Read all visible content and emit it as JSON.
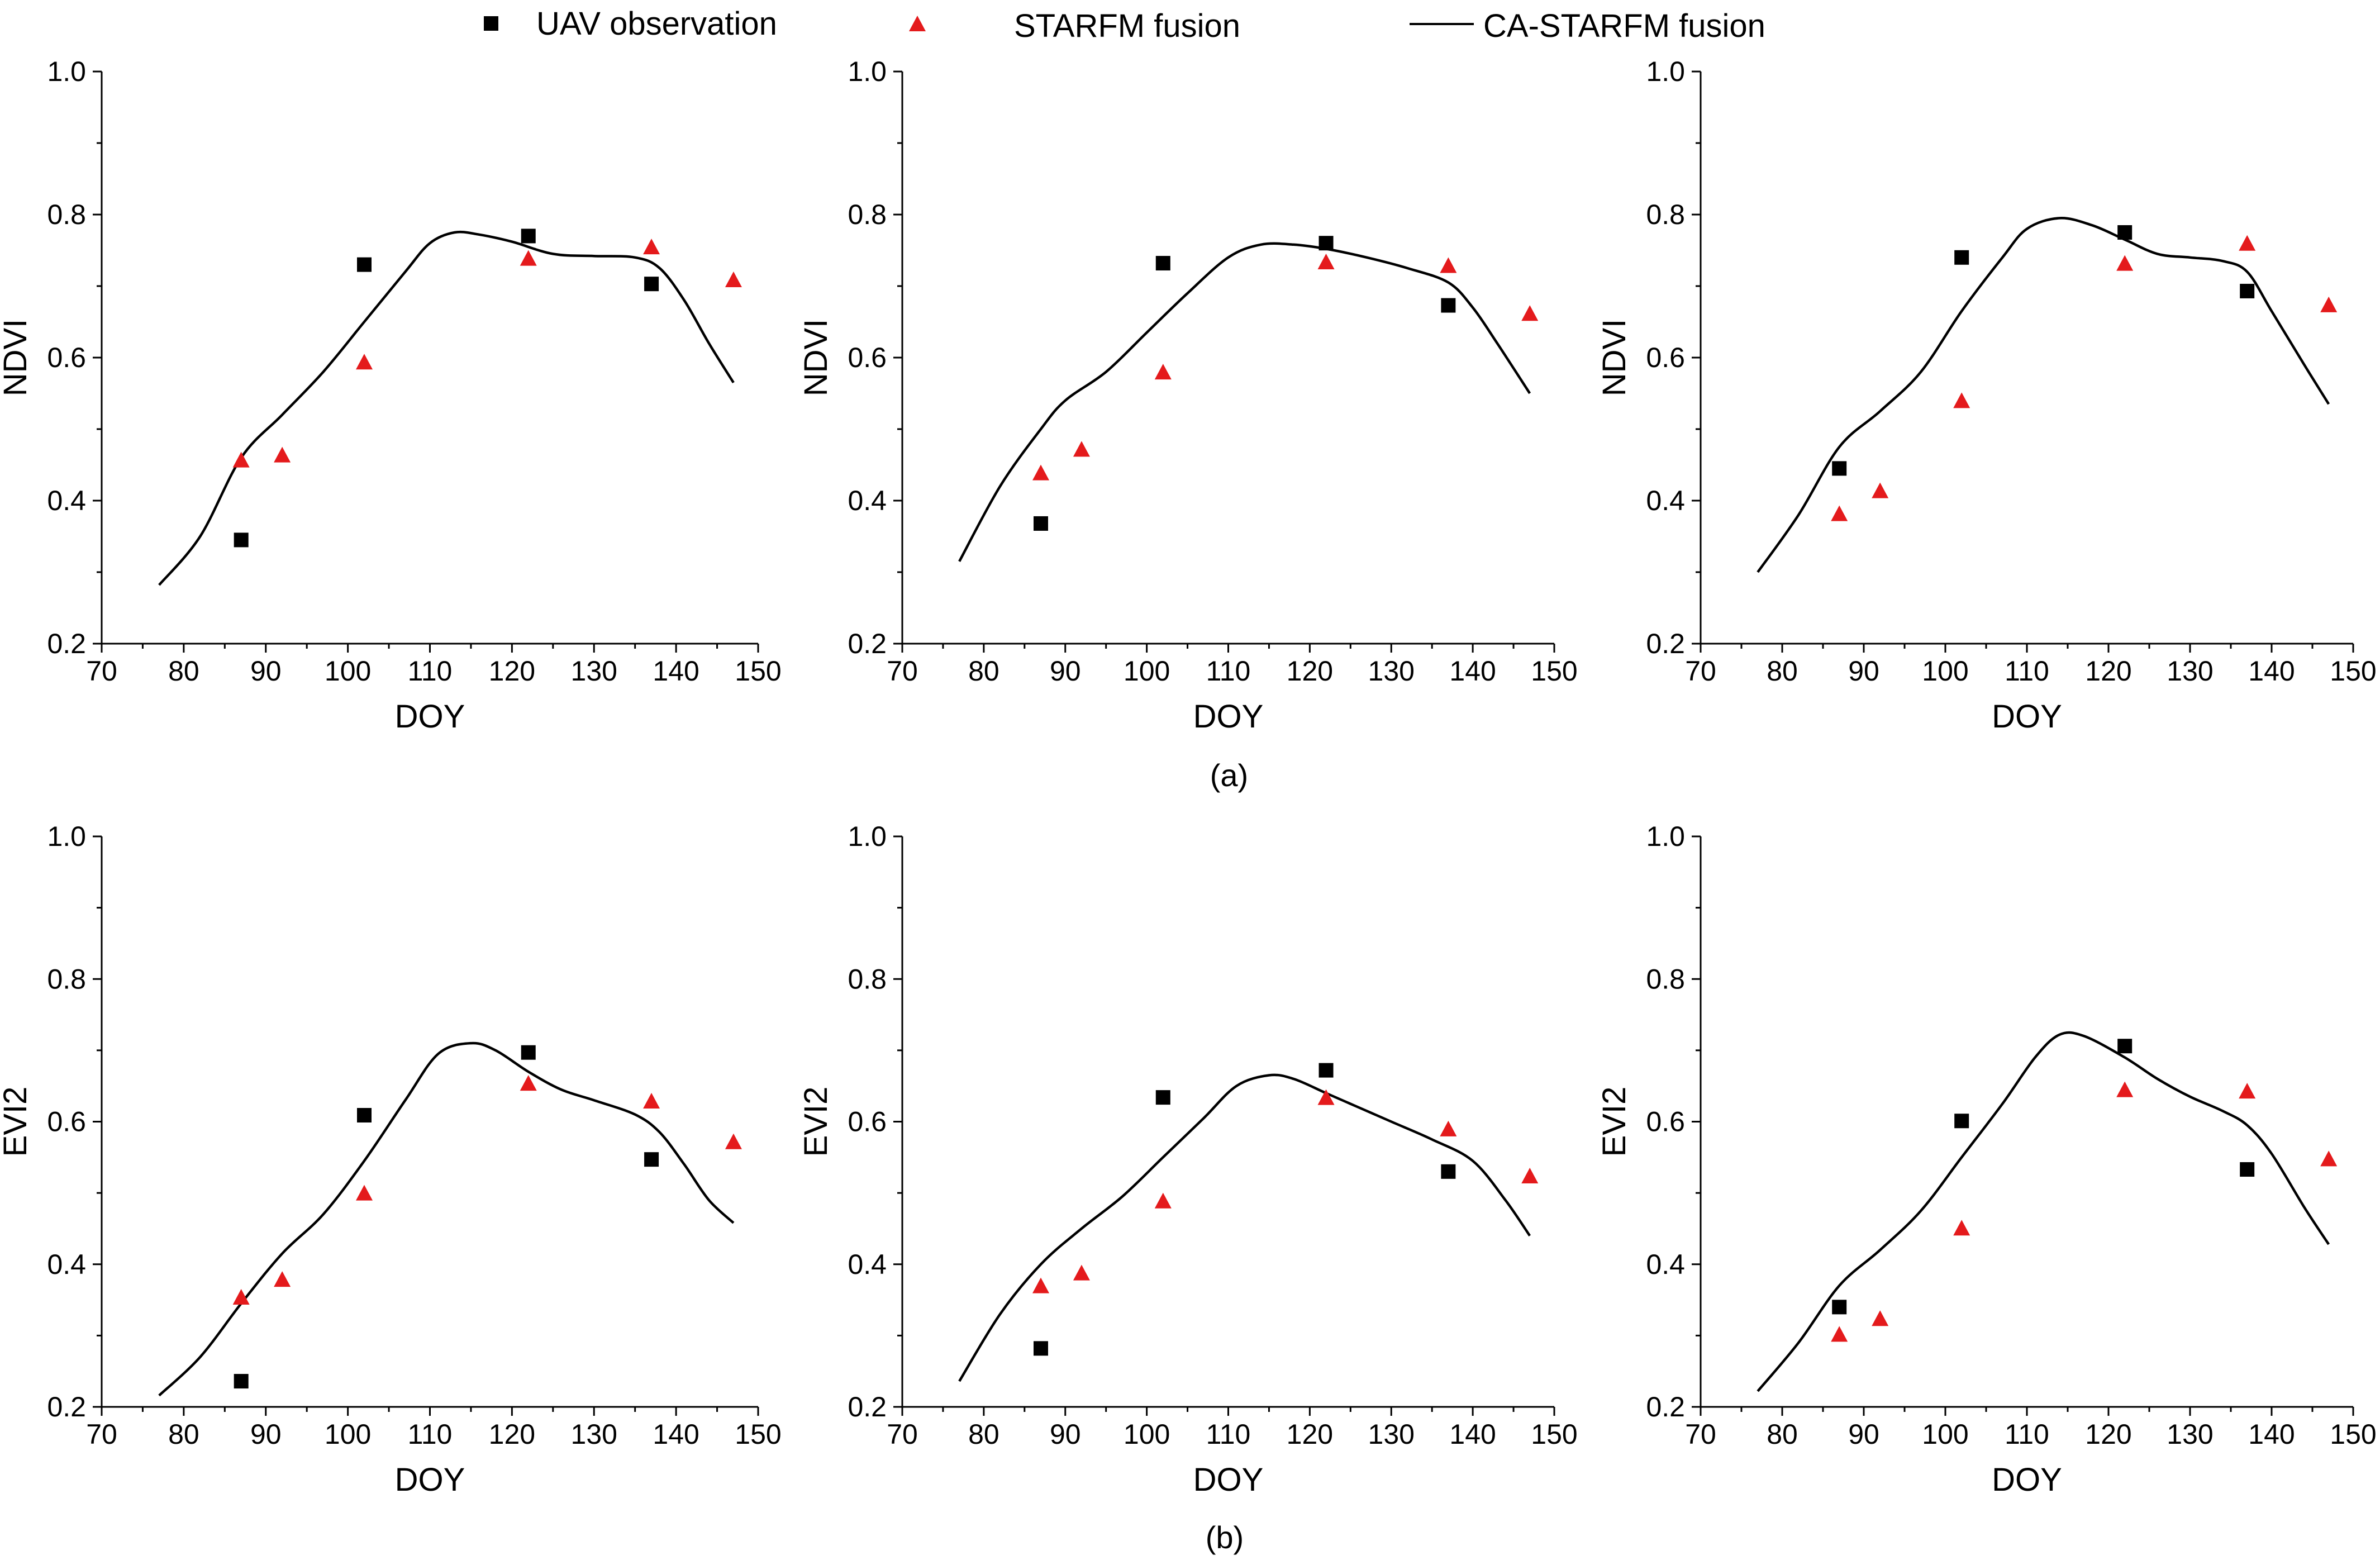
{
  "legend": {
    "uav_label": "UAV observation",
    "starfm_label": "STARFM fusion",
    "ca_label": "CA-STARFM fusion"
  },
  "colors": {
    "uav": "#000000",
    "starfm": "#e41a1c",
    "ca": "#000000"
  },
  "captions": {
    "a": "(a)",
    "b": "(b)"
  },
  "chart_data": [
    {
      "type": "scatter",
      "xlabel": "DOY",
      "ylabel": "NDVI",
      "xlim": [
        70,
        150
      ],
      "ylim": [
        0.2,
        1.0
      ],
      "xticks": [
        "70",
        "80",
        "90",
        "100",
        "110",
        "120",
        "130",
        "140",
        "150"
      ],
      "yticks": [
        "0.2",
        "0.4",
        "0.6",
        "0.8",
        "1.0"
      ],
      "series": [
        {
          "name": "UAV observation",
          "marker": "square",
          "x": [
            87,
            102,
            122,
            137
          ],
          "y": [
            0.345,
            0.73,
            0.77,
            0.703
          ]
        },
        {
          "name": "STARFM fusion",
          "marker": "triangle",
          "x": [
            87,
            92,
            102,
            122,
            137,
            147
          ],
          "y": [
            0.455,
            0.462,
            0.592,
            0.737,
            0.753,
            0.707
          ]
        },
        {
          "name": "CA-STARFM fusion",
          "marker": "line",
          "x": [
            77,
            82,
            87,
            92,
            97,
            102,
            107,
            110,
            113,
            116,
            120,
            125,
            130,
            135,
            138,
            141,
            144,
            147
          ],
          "y": [
            0.282,
            0.35,
            0.46,
            0.52,
            0.58,
            0.65,
            0.72,
            0.76,
            0.775,
            0.772,
            0.762,
            0.745,
            0.742,
            0.74,
            0.725,
            0.68,
            0.62,
            0.565
          ]
        }
      ]
    },
    {
      "type": "scatter",
      "xlabel": "DOY",
      "ylabel": "NDVI",
      "xlim": [
        70,
        150
      ],
      "ylim": [
        0.2,
        1.0
      ],
      "xticks": [
        "70",
        "80",
        "90",
        "100",
        "110",
        "120",
        "130",
        "140",
        "150"
      ],
      "yticks": [
        "0.2",
        "0.4",
        "0.6",
        "0.8",
        "1.0"
      ],
      "series": [
        {
          "name": "UAV observation",
          "marker": "square",
          "x": [
            87,
            102,
            122,
            137
          ],
          "y": [
            0.368,
            0.732,
            0.76,
            0.673
          ]
        },
        {
          "name": "STARFM fusion",
          "marker": "triangle",
          "x": [
            87,
            92,
            102,
            122,
            137,
            147
          ],
          "y": [
            0.437,
            0.47,
            0.578,
            0.732,
            0.727,
            0.66
          ]
        },
        {
          "name": "CA-STARFM fusion",
          "marker": "line",
          "x": [
            77,
            82,
            87,
            90,
            95,
            100,
            105,
            110,
            114,
            118,
            122,
            127,
            132,
            137,
            140,
            143,
            147
          ],
          "y": [
            0.315,
            0.42,
            0.5,
            0.54,
            0.58,
            0.635,
            0.69,
            0.74,
            0.758,
            0.758,
            0.752,
            0.74,
            0.725,
            0.705,
            0.67,
            0.62,
            0.55
          ]
        }
      ]
    },
    {
      "type": "scatter",
      "xlabel": "DOY",
      "ylabel": "NDVI",
      "xlim": [
        70,
        150
      ],
      "ylim": [
        0.2,
        1.0
      ],
      "xticks": [
        "70",
        "80",
        "90",
        "100",
        "110",
        "120",
        "130",
        "140",
        "150"
      ],
      "yticks": [
        "0.2",
        "0.4",
        "0.6",
        "0.8",
        "1.0"
      ],
      "series": [
        {
          "name": "UAV observation",
          "marker": "square",
          "x": [
            87,
            102,
            122,
            137
          ],
          "y": [
            0.445,
            0.74,
            0.775,
            0.693
          ]
        },
        {
          "name": "STARFM fusion",
          "marker": "triangle",
          "x": [
            87,
            92,
            102,
            122,
            137,
            147
          ],
          "y": [
            0.38,
            0.412,
            0.538,
            0.73,
            0.758,
            0.672
          ]
        },
        {
          "name": "CA-STARFM fusion",
          "marker": "line",
          "x": [
            77,
            82,
            87,
            92,
            97,
            102,
            107,
            110,
            114,
            118,
            122,
            126,
            130,
            134,
            137,
            140,
            144,
            147
          ],
          "y": [
            0.3,
            0.38,
            0.475,
            0.525,
            0.58,
            0.665,
            0.74,
            0.78,
            0.795,
            0.785,
            0.765,
            0.745,
            0.74,
            0.735,
            0.72,
            0.665,
            0.59,
            0.535
          ]
        }
      ]
    },
    {
      "type": "scatter",
      "xlabel": "DOY",
      "ylabel": "EVI2",
      "xlim": [
        70,
        150
      ],
      "ylim": [
        0.2,
        1.0
      ],
      "xticks": [
        "70",
        "80",
        "90",
        "100",
        "110",
        "120",
        "130",
        "140",
        "150"
      ],
      "yticks": [
        "0.2",
        "0.4",
        "0.6",
        "0.8",
        "1.0"
      ],
      "series": [
        {
          "name": "UAV observation",
          "marker": "square",
          "x": [
            87,
            102,
            122,
            137
          ],
          "y": [
            0.236,
            0.609,
            0.697,
            0.547
          ]
        },
        {
          "name": "STARFM fusion",
          "marker": "triangle",
          "x": [
            87,
            92,
            102,
            122,
            137,
            147
          ],
          "y": [
            0.352,
            0.377,
            0.498,
            0.652,
            0.627,
            0.57
          ]
        },
        {
          "name": "CA-STARFM fusion",
          "marker": "line",
          "x": [
            77,
            82,
            87,
            92,
            97,
            102,
            107,
            111,
            115,
            118,
            122,
            126,
            130,
            135,
            138,
            141,
            144,
            147
          ],
          "y": [
            0.216,
            0.27,
            0.345,
            0.415,
            0.47,
            0.545,
            0.63,
            0.695,
            0.71,
            0.7,
            0.67,
            0.645,
            0.63,
            0.61,
            0.585,
            0.54,
            0.49,
            0.458
          ]
        }
      ]
    },
    {
      "type": "scatter",
      "xlabel": "DOY",
      "ylabel": "EVI2",
      "xlim": [
        70,
        150
      ],
      "ylim": [
        0.2,
        1.0
      ],
      "xticks": [
        "70",
        "80",
        "90",
        "100",
        "110",
        "120",
        "130",
        "140",
        "150"
      ],
      "yticks": [
        "0.2",
        "0.4",
        "0.6",
        "0.8",
        "1.0"
      ],
      "series": [
        {
          "name": "UAV observation",
          "marker": "square",
          "x": [
            87,
            102,
            122,
            137
          ],
          "y": [
            0.282,
            0.634,
            0.672,
            0.53
          ]
        },
        {
          "name": "STARFM fusion",
          "marker": "triangle",
          "x": [
            87,
            92,
            102,
            122,
            137,
            147
          ],
          "y": [
            0.368,
            0.386,
            0.487,
            0.632,
            0.588,
            0.522
          ]
        },
        {
          "name": "CA-STARFM fusion",
          "marker": "line",
          "x": [
            77,
            82,
            87,
            92,
            97,
            102,
            107,
            111,
            115,
            118,
            122,
            126,
            130,
            135,
            140,
            144,
            147
          ],
          "y": [
            0.236,
            0.33,
            0.4,
            0.45,
            0.495,
            0.55,
            0.605,
            0.65,
            0.665,
            0.66,
            0.64,
            0.62,
            0.6,
            0.575,
            0.545,
            0.49,
            0.44
          ]
        }
      ]
    },
    {
      "type": "scatter",
      "xlabel": "DOY",
      "ylabel": "EVI2",
      "xlim": [
        70,
        150
      ],
      "ylim": [
        0.2,
        1.0
      ],
      "xticks": [
        "70",
        "80",
        "90",
        "100",
        "110",
        "120",
        "130",
        "140",
        "150"
      ],
      "yticks": [
        "0.2",
        "0.4",
        "0.6",
        "0.8",
        "1.0"
      ],
      "series": [
        {
          "name": "UAV observation",
          "marker": "square",
          "x": [
            87,
            102,
            122,
            137
          ],
          "y": [
            0.34,
            0.601,
            0.706,
            0.533
          ]
        },
        {
          "name": "STARFM fusion",
          "marker": "triangle",
          "x": [
            87,
            92,
            102,
            122,
            137,
            147
          ],
          "y": [
            0.3,
            0.322,
            0.449,
            0.643,
            0.641,
            0.546
          ]
        },
        {
          "name": "CA-STARFM fusion",
          "marker": "line",
          "x": [
            77,
            82,
            87,
            92,
            97,
            102,
            107,
            111,
            114,
            117,
            122,
            126,
            130,
            134,
            137,
            140,
            144,
            147
          ],
          "y": [
            0.222,
            0.29,
            0.37,
            0.42,
            0.475,
            0.55,
            0.625,
            0.69,
            0.722,
            0.72,
            0.69,
            0.66,
            0.635,
            0.615,
            0.595,
            0.555,
            0.48,
            0.428
          ]
        }
      ]
    }
  ]
}
